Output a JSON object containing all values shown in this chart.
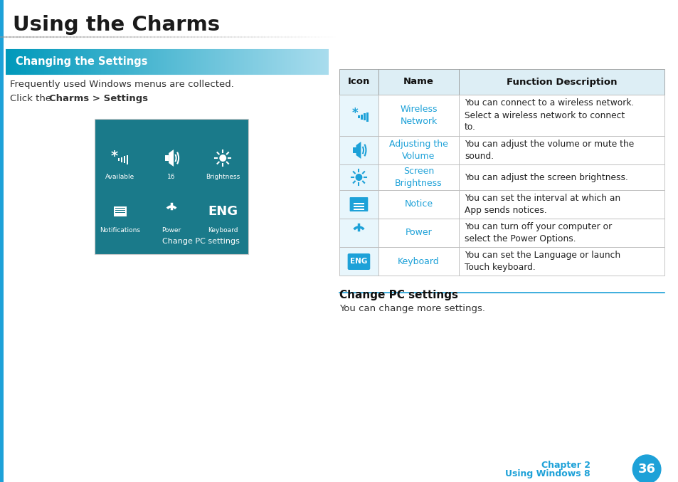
{
  "title": "Using the Charms",
  "chapter_text": "Chapter 2",
  "chapter_sub": "Using Windows 8",
  "page_num": "36",
  "page_bg": "#ffffff",
  "title_color": "#1a1a1a",
  "chapter_color": "#1da1d8",
  "page_circle_color": "#1da1d8",
  "left_bar_color": "#1da1d8",
  "section_banner_text": "Changing the Settings",
  "section_banner_color": "#0099bb",
  "body_text1": "Frequently used Windows menus are collected.",
  "body_text2_pre": "Click the ",
  "body_text2_bold": "Charms > Settings",
  "body_text2_post": ".",
  "teal_panel_color": "#1a7a8a",
  "panel_footer": "Change PC settings",
  "table_header_bg": "#ddeef5",
  "table_border_color": "#aaaaaa",
  "table_name_color": "#1da1d8",
  "table_cols": [
    "Icon",
    "Name",
    "Function Description"
  ],
  "table_rows": [
    {
      "icon_type": "wireless",
      "name": "Wireless\nNetwork",
      "desc": "You can connect to a wireless network.\nSelect a wireless network to connect\nto."
    },
    {
      "icon_type": "volume",
      "name": "Adjusting the\nVolume",
      "desc": "You can adjust the volume or mute the\nsound."
    },
    {
      "icon_type": "brightness",
      "name": "Screen\nBrightness",
      "desc": "You can adjust the screen brightness."
    },
    {
      "icon_type": "notice",
      "name": "Notice",
      "desc": "You can set the interval at which an\nApp sends notices."
    },
    {
      "icon_type": "power",
      "name": "Power",
      "desc": "You can turn off your computer or\nselect the Power Options."
    },
    {
      "icon_type": "keyboard",
      "name": "Keyboard",
      "desc": "You can set the Language or launch\nTouch keyboard."
    }
  ],
  "change_pc_title": "Change PC settings",
  "change_pc_body": "You can change more settings.",
  "accent_color": "#1da1d8"
}
